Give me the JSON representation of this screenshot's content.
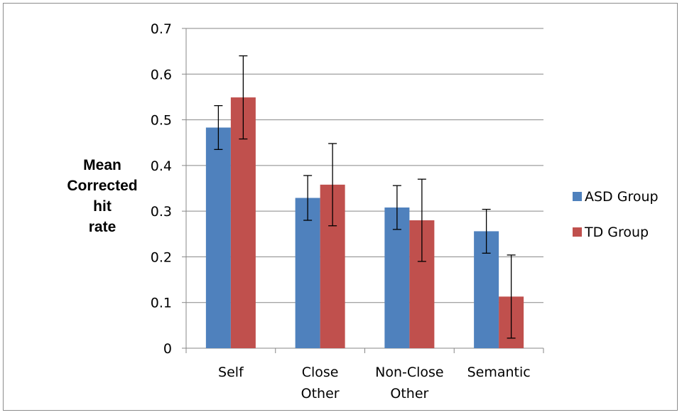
{
  "chart_data": {
    "type": "bar",
    "title": "",
    "xlabel": "",
    "ylabel": "Mean Corrected hit rate",
    "ylabel_lines": [
      "Mean",
      "Corrected hit",
      "rate"
    ],
    "categories": [
      "Self",
      "Close Other",
      "Non-Close Other",
      "Semantic"
    ],
    "category_lines": [
      [
        "Self"
      ],
      [
        "Close",
        "Other"
      ],
      [
        "Non-Close",
        "Other"
      ],
      [
        "Semantic"
      ]
    ],
    "ylim": [
      0,
      0.7
    ],
    "yticks": [
      0,
      0.1,
      0.2,
      0.3,
      0.4,
      0.5,
      0.6,
      0.7
    ],
    "ytick_labels": [
      "0",
      "0.1",
      "0.2",
      "0.3",
      "0.4",
      "0.5",
      "0.6",
      "0.7"
    ],
    "grid": true,
    "legend_position": "right",
    "series": [
      {
        "name": "ASD Group",
        "color": "#4f81bd",
        "values": [
          0.483,
          0.329,
          0.308,
          0.256
        ],
        "error": [
          0.048,
          0.049,
          0.048,
          0.048
        ]
      },
      {
        "name": "TD Group",
        "color": "#c0504d",
        "values": [
          0.549,
          0.358,
          0.28,
          0.113
        ],
        "error": [
          0.091,
          0.09,
          0.09,
          0.091
        ]
      }
    ]
  }
}
